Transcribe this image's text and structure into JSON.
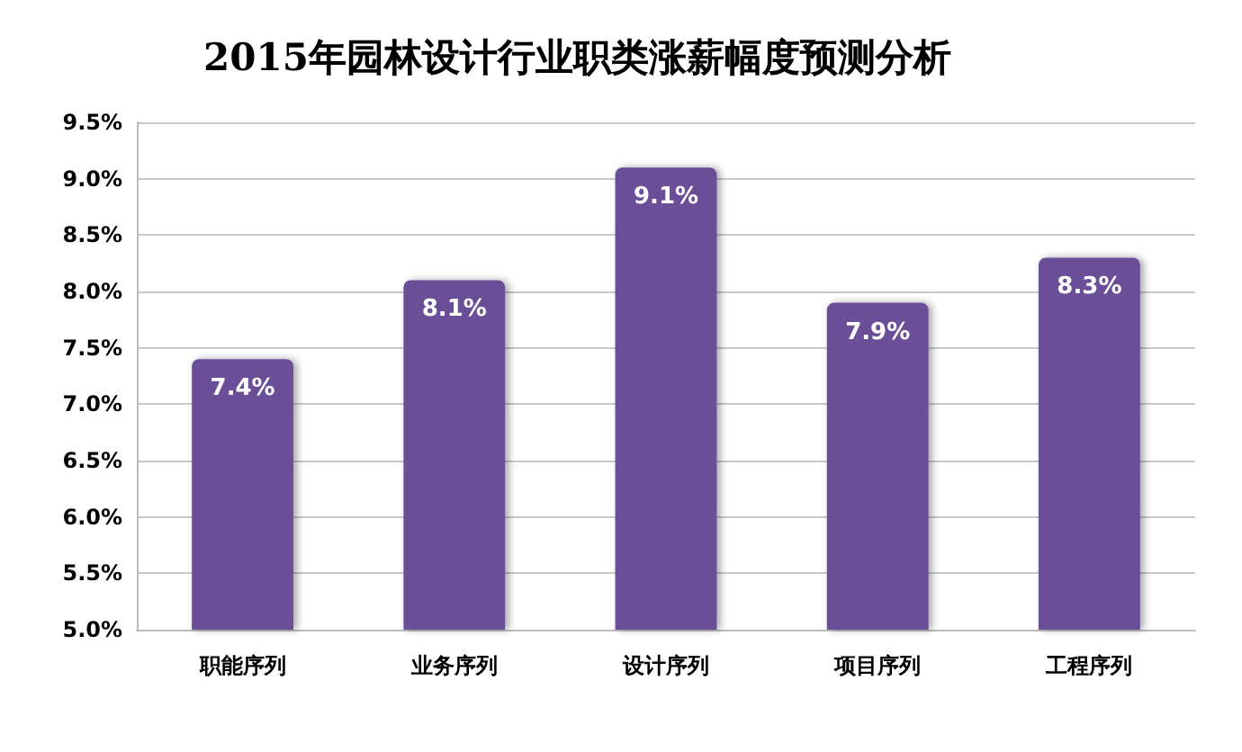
{
  "chart_data": {
    "type": "bar",
    "title": "2015年园林设计行业职类涨薪幅度预测分析",
    "categories": [
      "职能序列",
      "业务序列",
      "设计序列",
      "项目序列",
      "工程序列"
    ],
    "values": [
      7.4,
      8.1,
      9.1,
      7.9,
      8.3
    ],
    "value_labels": [
      "7.4%",
      "8.1%",
      "9.1%",
      "7.9%",
      "8.3%"
    ],
    "color": "#6a4f98",
    "ylim": [
      5,
      9.5
    ],
    "yticks": [
      {
        "value": 5,
        "label": "5.0%"
      },
      {
        "value": 5.5,
        "label": "5.5%"
      },
      {
        "value": 6,
        "label": "6.0%"
      },
      {
        "value": 6.5,
        "label": "6.5%"
      },
      {
        "value": 7,
        "label": "7.0%"
      },
      {
        "value": 7.5,
        "label": "7.5%"
      },
      {
        "value": 8,
        "label": "8.0%"
      },
      {
        "value": 8.5,
        "label": "8.5%"
      },
      {
        "value": 9,
        "label": "9.0%"
      },
      {
        "value": 9.5,
        "label": "9.5%"
      }
    ],
    "grid": "y"
  }
}
